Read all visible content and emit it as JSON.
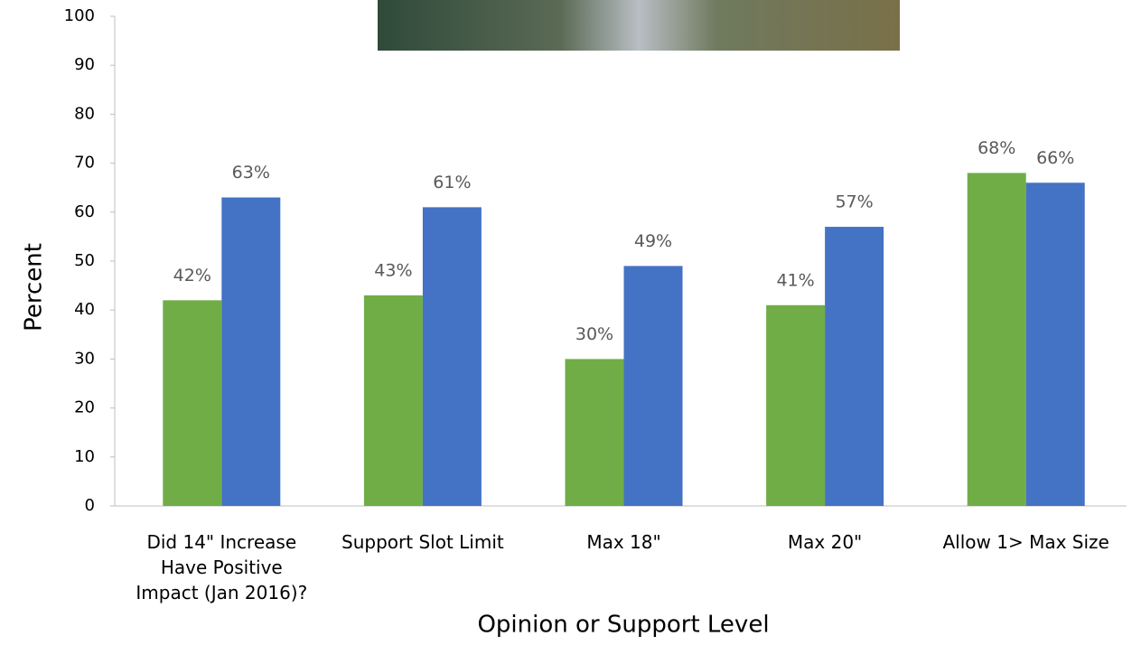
{
  "chart_data": {
    "type": "bar",
    "x_label": "Opinion or Support Level",
    "y_label": "Percent",
    "categories": [
      "Did 14\" Increase Have Positive Impact (Jan 2016)?",
      "Support Slot Limit",
      "Max 18\"",
      "Max 20\"",
      "Allow 1> Max Size"
    ],
    "series": [
      {
        "color": "#70ad47",
        "values": [
          42,
          43,
          30,
          41,
          68
        ],
        "value_labels": [
          "42%",
          "43%",
          "30%",
          "41%",
          "68%"
        ]
      },
      {
        "color": "#4472c4",
        "values": [
          63,
          61,
          49,
          57,
          66
        ],
        "value_labels": [
          "63%",
          "61%",
          "49%",
          "57%",
          "66%"
        ]
      }
    ],
    "ylim": [
      0,
      100
    ],
    "yticks": [
      0,
      10,
      20,
      30,
      40,
      50,
      60,
      70,
      80,
      90,
      100
    ]
  }
}
